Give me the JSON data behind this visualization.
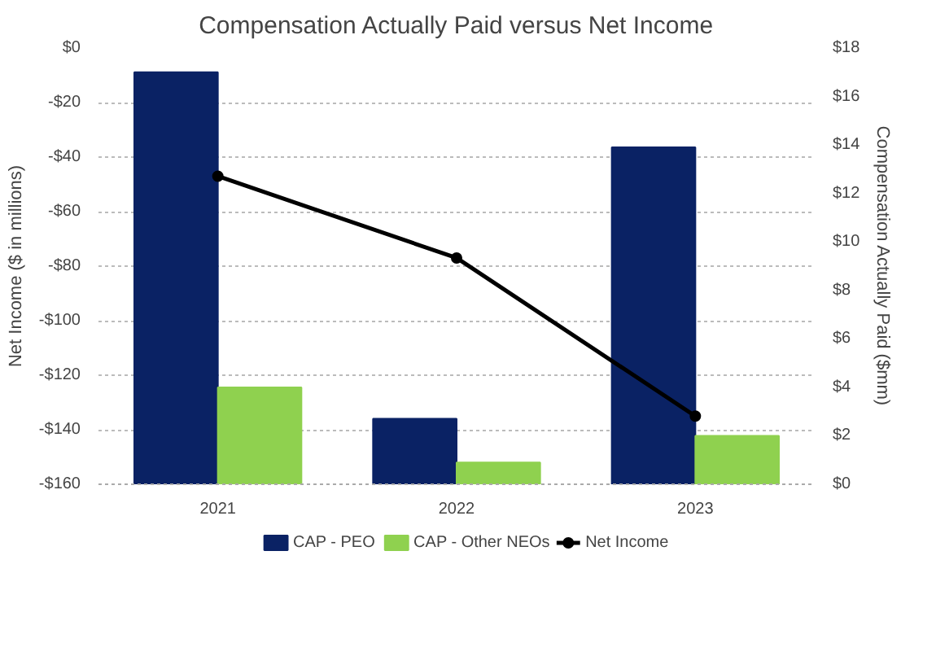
{
  "chart_data": {
    "type": "bar",
    "title": "Compensation Actually Paid versus Net Income",
    "categories": [
      "2021",
      "2022",
      "2023"
    ],
    "ylabel": "Net Income ($ in millions)",
    "y2label": "Compensation Actually Paid ($mm)",
    "ylim": [
      -160,
      0
    ],
    "yticks": [
      {
        "value": -160,
        "label": "-$160"
      },
      {
        "value": -140,
        "label": "-$140"
      },
      {
        "value": -120,
        "label": "-$120"
      },
      {
        "value": -100,
        "label": "-$100"
      },
      {
        "value": -80,
        "label": "-$80"
      },
      {
        "value": -60,
        "label": "-$60"
      },
      {
        "value": -40,
        "label": "-$40"
      },
      {
        "value": -20,
        "label": "-$20"
      },
      {
        "value": 0,
        "label": "$0"
      }
    ],
    "y2lim": [
      0,
      18
    ],
    "y2ticks": [
      {
        "value": 0,
        "label": "$0"
      },
      {
        "value": 2,
        "label": "$2"
      },
      {
        "value": 4,
        "label": "$4"
      },
      {
        "value": 6,
        "label": "$6"
      },
      {
        "value": 8,
        "label": "$8"
      },
      {
        "value": 10,
        "label": "$10"
      },
      {
        "value": 12,
        "label": "$12"
      },
      {
        "value": 14,
        "label": "$14"
      },
      {
        "value": 16,
        "label": "$16"
      },
      {
        "value": 18,
        "label": "$18"
      }
    ],
    "series": [
      {
        "name": "CAP - PEO",
        "axis": "y2",
        "color": "#0a2264",
        "values": [
          17.0,
          2.7,
          13.9
        ]
      },
      {
        "name": "CAP - Other NEOs",
        "axis": "y2",
        "color": "#8fd14f",
        "values": [
          4.0,
          0.9,
          2.0
        ]
      },
      {
        "name": "Net Income",
        "type": "line",
        "color": "#000000",
        "marker": "circle",
        "values": [
          -47,
          -77,
          -135
        ]
      }
    ],
    "grid": "y",
    "legend": "bottom"
  }
}
